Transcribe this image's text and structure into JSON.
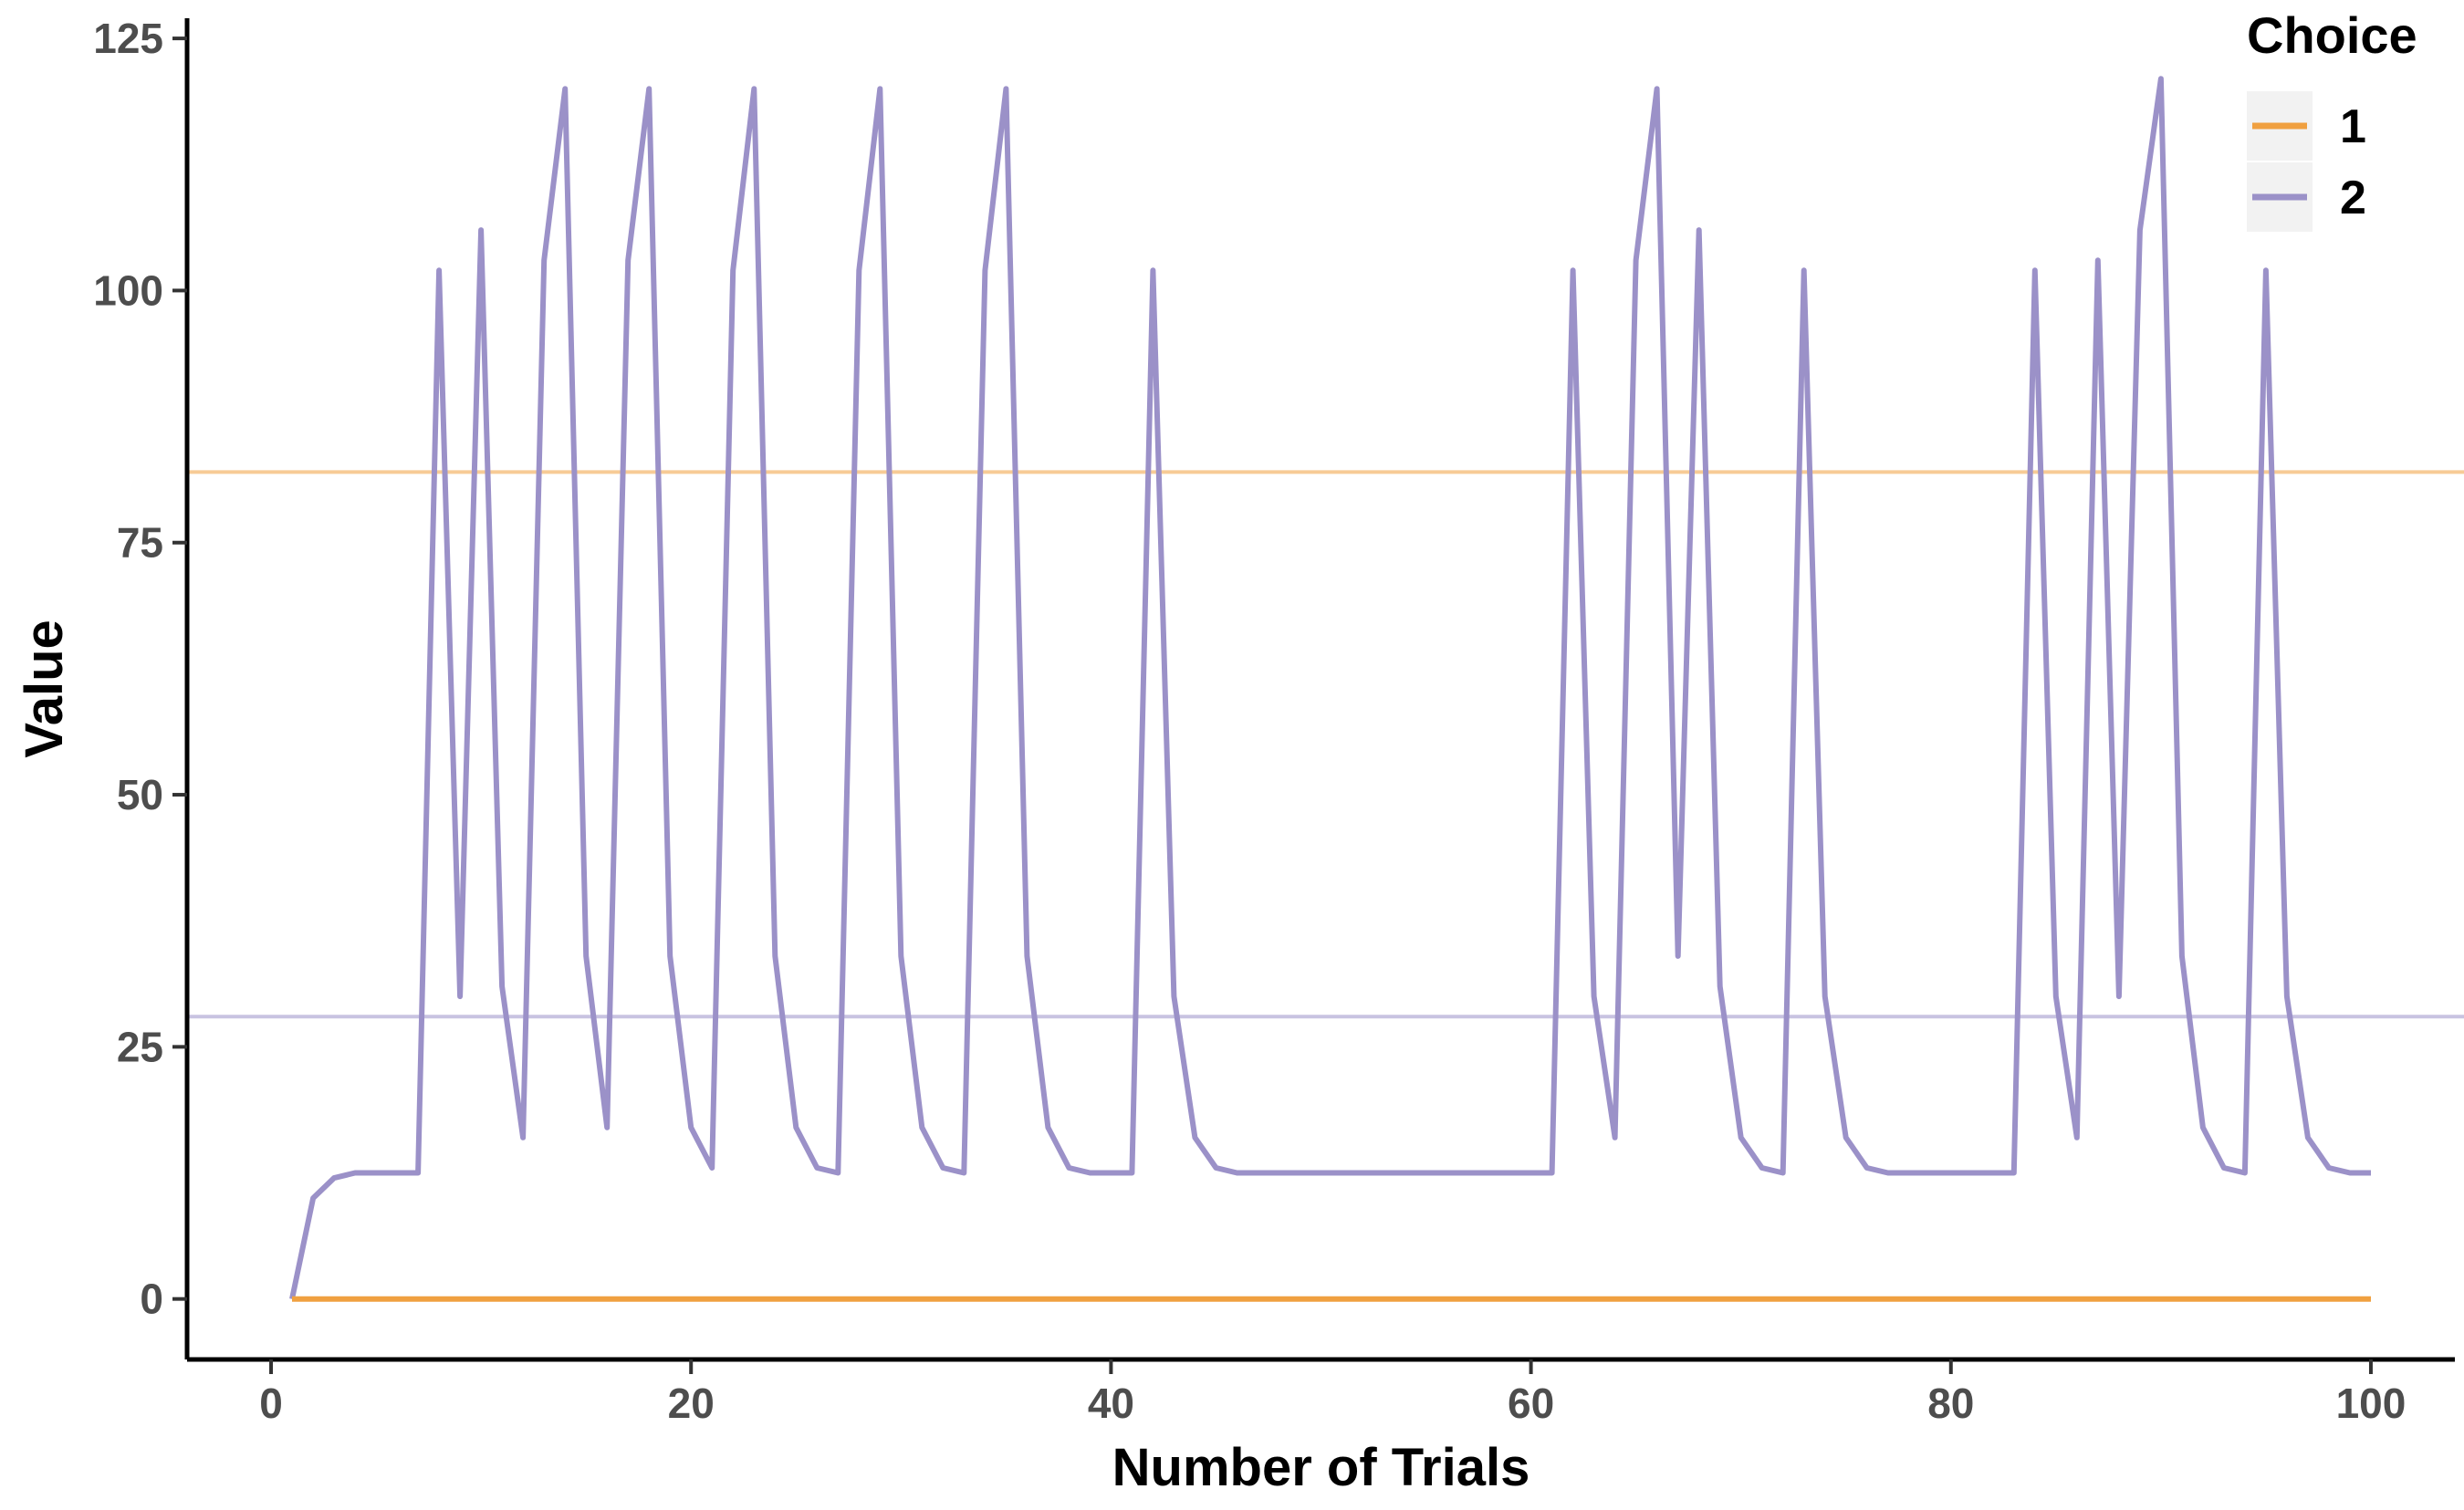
{
  "chart_data": {
    "type": "line",
    "title": "",
    "xlabel": "Number of Trials",
    "ylabel": "Value",
    "xlim": [
      -4,
      104
    ],
    "ylim": [
      -6,
      127
    ],
    "x_ticks": [
      0,
      20,
      40,
      60,
      80,
      100
    ],
    "y_ticks": [
      0,
      25,
      50,
      75,
      100,
      125
    ],
    "grid": false,
    "legend": {
      "title": "Choice",
      "position": "top-right"
    },
    "series": [
      {
        "name": "1",
        "color": "#F0A040",
        "reference_line": 82,
        "x": [
          1,
          100
        ],
        "values": [
          0,
          0
        ]
      },
      {
        "name": "2",
        "color": "#9B91C8",
        "reference_line": 28,
        "x": [
          1,
          2,
          3,
          4,
          5,
          6,
          7,
          8,
          9,
          10,
          11,
          12,
          13,
          14,
          15,
          16,
          17,
          18,
          19,
          20,
          21,
          22,
          23,
          24,
          25,
          26,
          27,
          28,
          29,
          30,
          31,
          32,
          33,
          34,
          35,
          36,
          37,
          38,
          39,
          40,
          41,
          42,
          43,
          44,
          45,
          46,
          47,
          48,
          49,
          50,
          51,
          52,
          53,
          54,
          55,
          56,
          57,
          58,
          59,
          60,
          61,
          62,
          63,
          64,
          65,
          66,
          67,
          68,
          69,
          70,
          71,
          72,
          73,
          74,
          75,
          76,
          77,
          78,
          79,
          80,
          81,
          82,
          83,
          84,
          85,
          86,
          87,
          88,
          89,
          90,
          91,
          92,
          93,
          94,
          95,
          96,
          97,
          98,
          99,
          100
        ],
        "values": [
          0,
          10,
          12,
          12.5,
          12.5,
          12.5,
          12.5,
          102,
          30,
          106,
          31,
          16,
          103,
          120,
          34,
          17,
          103,
          120,
          34,
          17,
          13,
          102,
          120,
          34,
          17,
          13,
          12.5,
          102,
          120,
          34,
          17,
          13,
          12.5,
          102,
          120,
          34,
          17,
          13,
          12.5,
          12.5,
          12.5,
          102,
          30,
          16,
          13,
          12.5,
          12.5,
          12.5,
          12.5,
          12.5,
          12.5,
          12.5,
          12.5,
          12.5,
          12.5,
          12.5,
          12.5,
          12.5,
          12.5,
          12.5,
          12.5,
          102,
          30,
          16,
          103,
          120,
          34,
          106,
          31,
          16,
          13,
          12.5,
          102,
          30,
          16,
          13,
          12.5,
          12.5,
          12.5,
          12.5,
          12.5,
          12.5,
          12.5,
          102,
          30,
          16,
          103,
          30,
          106,
          121,
          34,
          17,
          13,
          12.5,
          102,
          30,
          16,
          13,
          12.5,
          12.5
        ]
      }
    ]
  }
}
